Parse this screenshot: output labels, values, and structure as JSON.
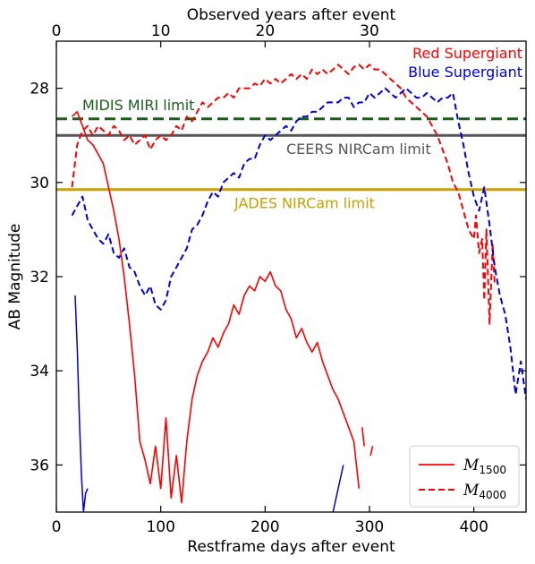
{
  "chart_data": {
    "type": "line",
    "xlabel": "Restframe days after event",
    "ylabel": "AB Magnitude",
    "top_xlabel": "Observed years after event",
    "xlim": [
      0,
      450
    ],
    "ylim": [
      37,
      27
    ],
    "y_inverted": true,
    "x_ticks": [
      0,
      100,
      200,
      300,
      400
    ],
    "y_ticks": [
      28,
      30,
      32,
      34,
      36
    ],
    "top_x_ticks": [
      0,
      10,
      20,
      30
    ],
    "top_x_ticks_days": [
      0,
      100,
      200,
      300
    ],
    "x_tick_labels": [
      "0",
      "100",
      "200",
      "300",
      "400"
    ],
    "y_tick_labels": [
      "28",
      "30",
      "32",
      "34",
      "36"
    ],
    "top_x_tick_labels": [
      "0",
      "10",
      "20",
      "30"
    ],
    "grid": false,
    "legend_position": "bottom-right",
    "hlines": [
      {
        "name": "MIDIS MIRI limit",
        "y": 28.65,
        "color": "#1a5e1a",
        "style": "dashed"
      },
      {
        "name": "CEERS NIRCam limit",
        "y": 29.0,
        "color": "#555555",
        "style": "solid"
      },
      {
        "name": "JADES NIRCam limit",
        "y": 30.15,
        "color": "#c8a000",
        "style": "solid"
      }
    ],
    "annotations": [
      {
        "text": "Red Supergiant",
        "color": "#ff0000"
      },
      {
        "text": "Blue Supergiant",
        "color": "#0000dd"
      }
    ],
    "legend": [
      {
        "label": "M",
        "subscript": "1500",
        "style": "solid"
      },
      {
        "label": "M",
        "subscript": "4000",
        "style": "dashed"
      }
    ],
    "series": [
      {
        "name": "Red Supergiant M4000",
        "color": "#ff0000",
        "style": "dashed",
        "x": [
          15,
          20,
          25,
          30,
          35,
          40,
          45,
          50,
          55,
          60,
          65,
          70,
          75,
          80,
          85,
          90,
          95,
          100,
          105,
          110,
          115,
          120,
          125,
          130,
          135,
          140,
          145,
          150,
          155,
          160,
          165,
          170,
          175,
          180,
          185,
          190,
          195,
          200,
          205,
          210,
          215,
          220,
          225,
          230,
          235,
          240,
          245,
          250,
          255,
          260,
          265,
          270,
          275,
          280,
          285,
          290,
          295,
          300,
          305,
          310,
          315,
          320,
          325,
          330,
          335,
          340,
          345,
          350,
          355,
          360,
          365,
          370,
          375,
          380,
          385,
          390,
          395,
          400,
          402,
          405,
          408,
          410,
          412,
          415,
          418,
          420
        ],
        "y": [
          30.1,
          29.2,
          28.9,
          28.8,
          29.0,
          28.8,
          28.9,
          29.0,
          28.8,
          28.9,
          29.1,
          29.0,
          29.2,
          29.1,
          29.0,
          29.3,
          29.1,
          29.0,
          29.1,
          29.0,
          28.8,
          28.9,
          28.6,
          28.7,
          28.5,
          28.3,
          28.4,
          28.3,
          28.2,
          28.2,
          28.1,
          28.2,
          28.0,
          28.0,
          28.0,
          27.9,
          27.95,
          27.8,
          27.9,
          27.8,
          27.9,
          27.8,
          27.7,
          27.8,
          27.7,
          27.8,
          27.6,
          27.7,
          27.6,
          27.7,
          27.6,
          27.5,
          27.6,
          27.7,
          27.55,
          27.5,
          27.6,
          27.5,
          27.6,
          27.6,
          27.7,
          27.8,
          27.9,
          28.0,
          28.2,
          28.3,
          28.4,
          28.5,
          28.6,
          28.8,
          29.0,
          29.3,
          29.6,
          30.0,
          30.2,
          30.6,
          31.0,
          31.2,
          30.7,
          31.5,
          31.2,
          32.5,
          31.0,
          33.0,
          31.3,
          32.2
        ]
      },
      {
        "name": "Blue Supergiant M4000",
        "color": "#0000dd",
        "style": "dashed",
        "x": [
          15,
          20,
          25,
          30,
          35,
          40,
          45,
          50,
          55,
          60,
          65,
          70,
          75,
          80,
          85,
          90,
          95,
          100,
          105,
          110,
          115,
          120,
          125,
          130,
          135,
          140,
          145,
          150,
          155,
          160,
          165,
          170,
          175,
          180,
          185,
          190,
          195,
          200,
          205,
          210,
          215,
          220,
          225,
          230,
          235,
          240,
          245,
          250,
          255,
          260,
          265,
          270,
          275,
          280,
          285,
          290,
          295,
          300,
          305,
          310,
          315,
          320,
          325,
          330,
          335,
          340,
          345,
          350,
          355,
          360,
          365,
          370,
          375,
          380,
          385,
          390,
          395,
          400,
          405,
          410,
          415,
          420,
          425,
          430,
          435,
          440,
          445,
          450
        ],
        "y": [
          30.7,
          30.5,
          30.3,
          30.8,
          31.0,
          31.2,
          31.3,
          31.1,
          31.5,
          31.6,
          31.4,
          31.8,
          31.9,
          32.2,
          32.4,
          32.2,
          32.6,
          32.7,
          32.5,
          32.0,
          31.8,
          31.6,
          31.4,
          31.0,
          30.9,
          30.7,
          30.4,
          30.2,
          30.3,
          30.0,
          29.9,
          29.8,
          29.9,
          29.6,
          29.5,
          29.5,
          29.2,
          29.0,
          29.1,
          29.0,
          28.9,
          28.8,
          28.9,
          28.7,
          28.6,
          28.6,
          28.5,
          28.5,
          28.4,
          28.3,
          28.3,
          28.3,
          28.2,
          28.2,
          28.4,
          28.3,
          28.3,
          28.1,
          28.2,
          28.1,
          28.0,
          28.1,
          28.2,
          28.1,
          28.0,
          28.1,
          28.2,
          28.2,
          28.1,
          28.2,
          28.3,
          28.2,
          28.2,
          28.1,
          28.7,
          29.2,
          29.8,
          30.3,
          30.6,
          30.1,
          30.9,
          31.8,
          32.4,
          32.8,
          33.5,
          34.5,
          33.8,
          34.6
        ]
      },
      {
        "name": "Red Supergiant M1500",
        "color": "#ff0000",
        "style": "solid",
        "x": [
          15,
          20,
          25,
          30,
          35,
          40,
          45,
          50,
          55,
          60,
          65,
          70,
          75,
          80,
          85,
          90,
          95,
          100,
          105,
          110,
          115,
          120,
          125,
          130,
          135,
          140,
          145,
          150,
          155,
          160,
          165,
          170,
          175,
          180,
          185,
          190,
          195,
          200,
          205,
          210,
          215,
          220,
          225,
          230,
          235,
          240,
          245,
          250,
          255,
          260,
          265,
          270,
          275,
          280,
          285,
          290
        ],
        "y": [
          28.6,
          28.5,
          28.8,
          29.1,
          29.2,
          29.4,
          29.6,
          30.1,
          30.6,
          31.2,
          32.0,
          33.0,
          34.1,
          35.5,
          35.9,
          36.4,
          35.6,
          36.5,
          35.0,
          36.7,
          35.8,
          36.8,
          35.5,
          34.6,
          34.1,
          33.8,
          33.6,
          33.3,
          33.5,
          33.2,
          33.0,
          32.6,
          32.8,
          32.4,
          32.2,
          32.3,
          32.0,
          32.1,
          31.9,
          32.2,
          32.3,
          32.7,
          32.9,
          33.3,
          33.1,
          33.4,
          33.6,
          33.4,
          33.8,
          34.1,
          34.4,
          34.6,
          34.9,
          35.2,
          35.5,
          36.5
        ]
      },
      {
        "name": "Blue Supergiant M1500",
        "color": "#0000dd",
        "style": "solid",
        "x": [
          18,
          20,
          22,
          24,
          26,
          28,
          30,
          265,
          270,
          275
        ],
        "y": [
          32.4,
          33.5,
          35.0,
          36.2,
          37.0,
          36.6,
          36.5,
          37.0,
          36.5,
          36.0
        ]
      }
    ]
  }
}
